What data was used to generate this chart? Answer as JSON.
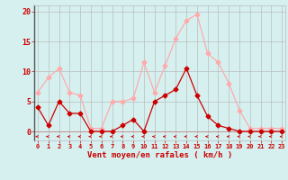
{
  "hours": [
    0,
    1,
    2,
    3,
    4,
    5,
    6,
    7,
    8,
    9,
    10,
    11,
    12,
    13,
    14,
    15,
    16,
    17,
    18,
    19,
    20,
    21,
    22,
    23
  ],
  "vent_moyen": [
    4,
    1,
    5,
    3,
    3,
    0,
    0,
    0,
    1,
    2,
    0,
    5,
    6,
    7,
    10.5,
    6,
    2.5,
    1,
    0.5,
    0,
    0,
    0,
    0,
    0
  ],
  "rafales": [
    6.5,
    9,
    10.5,
    6.5,
    6,
    0.5,
    0.5,
    5,
    5,
    5.5,
    11.5,
    6.5,
    11,
    15.5,
    18.5,
    19.5,
    13,
    11.5,
    8,
    3.5,
    0.5,
    0.5,
    0.5,
    0.5
  ],
  "color_moyen": "#cc0000",
  "color_rafales": "#ffaaaa",
  "bg_color": "#d6f0f0",
  "grid_color": "#bbbbbb",
  "xlabel": "Vent moyen/en rafales ( km/h )",
  "yticks": [
    0,
    5,
    10,
    15,
    20
  ],
  "ylim": [
    -1.5,
    21
  ],
  "xlim": [
    -0.3,
    23.3
  ],
  "tick_color": "#cc0000",
  "marker": "D",
  "markersize": 2.5,
  "linewidth": 0.9
}
